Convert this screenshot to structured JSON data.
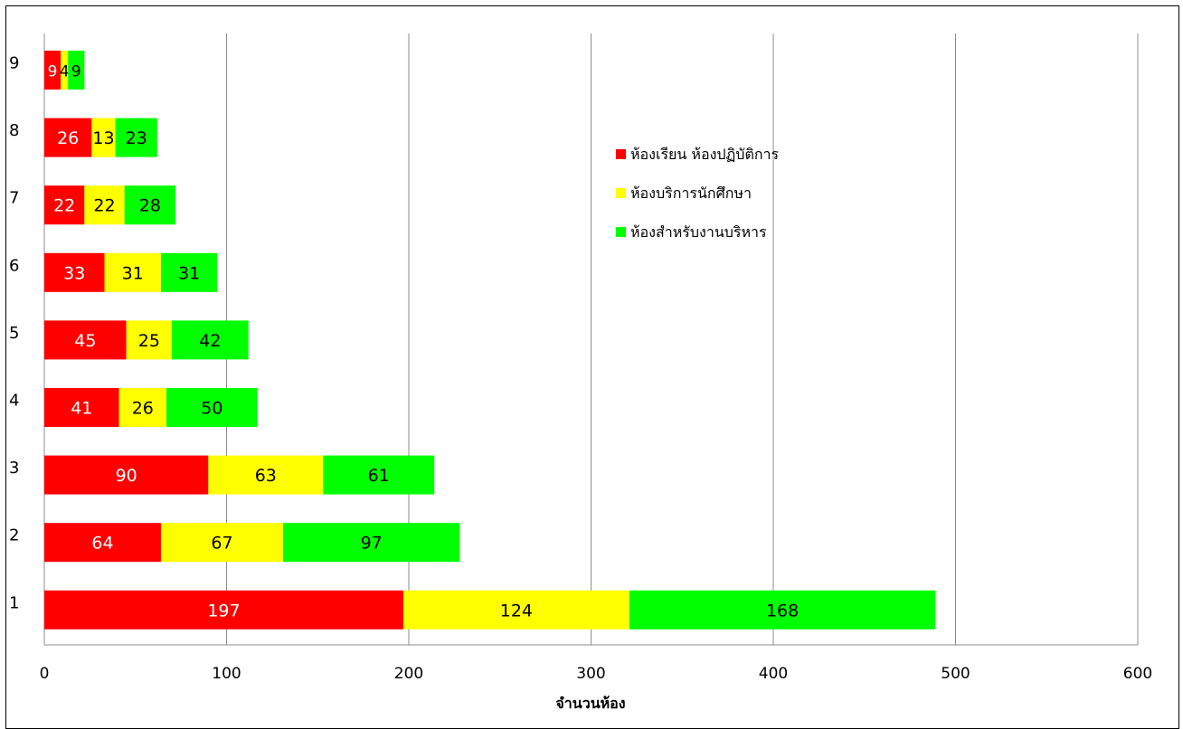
{
  "chart_data": {
    "type": "bar",
    "orientation": "horizontal",
    "stacked": true,
    "categories": [
      "1",
      "2",
      "3",
      "4",
      "5",
      "6",
      "7",
      "8",
      "9"
    ],
    "series": [
      {
        "name": "ห้องเรียน ห้องปฏิบัติการ",
        "color": "#ff0000",
        "label_color": "#ffffff",
        "values": [
          197,
          64,
          90,
          41,
          45,
          33,
          22,
          26,
          9
        ]
      },
      {
        "name": "ห้องบริการนักศึกษา",
        "color": "#ffff00",
        "label_color": "#000000",
        "values": [
          124,
          67,
          63,
          26,
          25,
          31,
          22,
          13,
          4
        ]
      },
      {
        "name": "ห้องสำหรับงานบริหาร",
        "color": "#00ff00",
        "label_color": "#000000",
        "values": [
          168,
          97,
          61,
          50,
          42,
          31,
          28,
          23,
          9
        ]
      }
    ],
    "xlim": [
      0,
      600
    ],
    "xticks": [
      0,
      100,
      200,
      300,
      400,
      500,
      600
    ],
    "xlabel": "จำนวนห้อง",
    "ylabel": "",
    "grid": "vertical",
    "legend_position": "right"
  }
}
